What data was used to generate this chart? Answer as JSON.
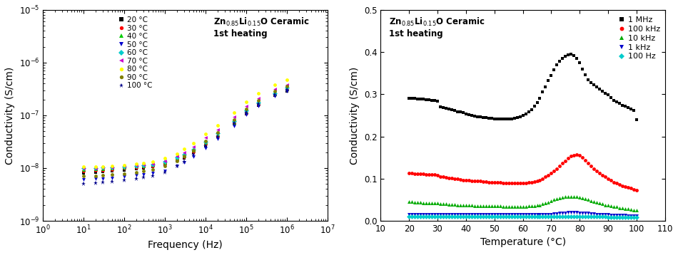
{
  "left_plot": {
    "xlabel": "Frequency (Hz)",
    "ylabel": "Conductivity (S/cm)",
    "xlim": [
      1.0,
      10000000.0
    ],
    "ylim": [
      1e-09,
      1e-05
    ],
    "temperatures": [
      20,
      30,
      40,
      50,
      60,
      70,
      80,
      90,
      100
    ],
    "colors": [
      "#000000",
      "#ff0000",
      "#00cc00",
      "#0000cd",
      "#00cccc",
      "#cc00cc",
      "#ffff00",
      "#808000",
      "#00008b"
    ],
    "markers": [
      "s",
      "o",
      "^",
      "v",
      "D",
      "<",
      "o",
      "o",
      "*"
    ],
    "marker_sizes": [
      3.5,
      3.5,
      3.5,
      3.5,
      3.5,
      3.5,
      3.5,
      3.5,
      4.5
    ],
    "frequencies": [
      10,
      20,
      30,
      50,
      100,
      200,
      300,
      500,
      1000,
      2000,
      3000,
      5000,
      10000,
      20000,
      50000,
      100000,
      200000,
      500000,
      1000000
    ],
    "conductivity_20C": [
      8e-09,
      8.3e-09,
      8.5e-09,
      8.8e-09,
      9.2e-09,
      9.8e-09,
      1e-08,
      1.05e-08,
      1.15e-08,
      1.35e-08,
      1.55e-08,
      1.95e-08,
      2.7e-08,
      3.9e-08,
      6.8e-08,
      1.05e-07,
      1.55e-07,
      2.35e-07,
      2.9e-07
    ],
    "conductivity_30C": [
      8.8e-09,
      9e-09,
      9.2e-09,
      9.5e-09,
      9.9e-09,
      1.02e-08,
      1.07e-08,
      1.1e-08,
      1.22e-08,
      1.45e-08,
      1.65e-08,
      2.05e-08,
      2.9e-08,
      4.1e-08,
      7e-08,
      1.1e-07,
      1.6e-07,
      2.45e-07,
      3.05e-07
    ],
    "conductivity_40C": [
      9.5e-09,
      9.7e-09,
      9.8e-09,
      1e-08,
      1.04e-08,
      1.08e-08,
      1.1e-08,
      1.15e-08,
      1.28e-08,
      1.52e-08,
      1.72e-08,
      2.15e-08,
      3.05e-08,
      4.3e-08,
      7.3e-08,
      1.15e-07,
      1.67e-07,
      2.5e-07,
      3.15e-07
    ],
    "conductivity_50C": [
      6e-09,
      6.2e-09,
      6.3e-09,
      6.5e-09,
      6.9e-09,
      7.3e-09,
      7.6e-09,
      8e-09,
      8.8e-09,
      1.08e-08,
      1.28e-08,
      1.65e-08,
      2.42e-08,
      3.55e-08,
      6.3e-08,
      1.02e-07,
      1.5e-07,
      2.3e-07,
      2.85e-07
    ],
    "conductivity_60C": [
      1e-08,
      1.01e-08,
      1.02e-08,
      1.04e-08,
      1.07e-08,
      1.1e-08,
      1.13e-08,
      1.18e-08,
      1.32e-08,
      1.58e-08,
      1.82e-08,
      2.25e-08,
      3.2e-08,
      4.6e-08,
      7.8e-08,
      1.22e-07,
      1.77e-07,
      2.65e-07,
      3.3e-07
    ],
    "conductivity_70C": [
      1e-08,
      1.01e-08,
      1.02e-08,
      1.04e-08,
      1.08e-08,
      1.13e-08,
      1.16e-08,
      1.22e-08,
      1.38e-08,
      1.68e-08,
      1.98e-08,
      2.55e-08,
      3.75e-08,
      5.4e-08,
      9.3e-08,
      1.48e-07,
      2.12e-07,
      3.15e-07,
      3.85e-07
    ],
    "conductivity_80C": [
      1.05e-08,
      1.06e-08,
      1.07e-08,
      1.09e-08,
      1.13e-08,
      1.2e-08,
      1.25e-08,
      1.32e-08,
      1.52e-08,
      1.88e-08,
      2.28e-08,
      2.95e-08,
      4.42e-08,
      6.4e-08,
      1.12e-07,
      1.78e-07,
      2.58e-07,
      3.85e-07,
      4.75e-07
    ],
    "conductivity_90C": [
      7e-09,
      7.2e-09,
      7.3e-09,
      7.5e-09,
      7.9e-09,
      8.3e-09,
      8.8e-09,
      9.3e-09,
      1.08e-08,
      1.38e-08,
      1.68e-08,
      2.15e-08,
      3.25e-08,
      4.75e-08,
      8.35e-08,
      1.33e-07,
      1.92e-07,
      2.88e-07,
      3.55e-07
    ],
    "conductivity_100C": [
      5e-09,
      5.2e-09,
      5.3e-09,
      5.5e-09,
      5.9e-09,
      6.3e-09,
      6.7e-09,
      7.1e-09,
      8.3e-09,
      1.08e-08,
      1.32e-08,
      1.78e-08,
      2.65e-08,
      3.9e-08,
      7e-08,
      1.12e-07,
      1.62e-07,
      2.45e-07,
      3.05e-07
    ]
  },
  "right_plot": {
    "xlabel": "Temperature (°C)",
    "ylabel": "Conductivity (S/cm)",
    "xlim": [
      10,
      110
    ],
    "ylim": [
      0,
      0.5
    ],
    "xticks": [
      10,
      20,
      30,
      40,
      50,
      60,
      70,
      80,
      90,
      100,
      110
    ],
    "yticks": [
      0.0,
      0.1,
      0.2,
      0.3,
      0.4,
      0.5
    ],
    "frequencies_label": [
      "1 MHz",
      "100 kHz",
      "10 kHz",
      "1 kHz",
      "100 Hz"
    ],
    "colors": [
      "#000000",
      "#ff0000",
      "#00aa00",
      "#0000cc",
      "#00cccc"
    ],
    "markers": [
      "s",
      "o",
      "^",
      "v",
      "D"
    ],
    "temperatures": [
      20,
      21,
      22,
      23,
      24,
      25,
      26,
      27,
      28,
      29,
      30,
      31,
      32,
      33,
      34,
      35,
      36,
      37,
      38,
      39,
      40,
      41,
      42,
      43,
      44,
      45,
      46,
      47,
      48,
      49,
      50,
      51,
      52,
      53,
      54,
      55,
      56,
      57,
      58,
      59,
      60,
      61,
      62,
      63,
      64,
      65,
      66,
      67,
      68,
      69,
      70,
      71,
      72,
      73,
      74,
      75,
      76,
      77,
      78,
      79,
      80,
      81,
      82,
      83,
      84,
      85,
      86,
      87,
      88,
      89,
      90,
      91,
      92,
      93,
      94,
      95,
      96,
      97,
      98,
      99,
      100
    ],
    "cond_1MHz": [
      0.29,
      0.291,
      0.29,
      0.289,
      0.289,
      0.288,
      0.287,
      0.287,
      0.286,
      0.285,
      0.284,
      0.27,
      0.268,
      0.266,
      0.265,
      0.263,
      0.261,
      0.259,
      0.258,
      0.256,
      0.254,
      0.252,
      0.25,
      0.248,
      0.247,
      0.246,
      0.245,
      0.244,
      0.243,
      0.243,
      0.242,
      0.242,
      0.241,
      0.241,
      0.241,
      0.241,
      0.242,
      0.243,
      0.244,
      0.246,
      0.249,
      0.253,
      0.258,
      0.264,
      0.271,
      0.28,
      0.29,
      0.305,
      0.318,
      0.332,
      0.345,
      0.358,
      0.37,
      0.378,
      0.385,
      0.39,
      0.394,
      0.395,
      0.392,
      0.385,
      0.375,
      0.36,
      0.346,
      0.335,
      0.328,
      0.322,
      0.318,
      0.312,
      0.308,
      0.302,
      0.298,
      0.292,
      0.286,
      0.282,
      0.278,
      0.274,
      0.271,
      0.268,
      0.265,
      0.262,
      0.24
    ],
    "cond_100kHz": [
      0.113,
      0.113,
      0.112,
      0.112,
      0.111,
      0.111,
      0.11,
      0.11,
      0.109,
      0.109,
      0.108,
      0.105,
      0.104,
      0.103,
      0.102,
      0.101,
      0.1,
      0.099,
      0.098,
      0.097,
      0.096,
      0.096,
      0.095,
      0.095,
      0.094,
      0.094,
      0.093,
      0.093,
      0.092,
      0.092,
      0.091,
      0.091,
      0.091,
      0.09,
      0.09,
      0.09,
      0.09,
      0.09,
      0.09,
      0.09,
      0.09,
      0.09,
      0.091,
      0.092,
      0.093,
      0.095,
      0.097,
      0.1,
      0.104,
      0.108,
      0.113,
      0.118,
      0.124,
      0.13,
      0.136,
      0.142,
      0.148,
      0.153,
      0.156,
      0.157,
      0.155,
      0.15,
      0.144,
      0.137,
      0.13,
      0.124,
      0.118,
      0.113,
      0.108,
      0.104,
      0.1,
      0.096,
      0.092,
      0.089,
      0.086,
      0.083,
      0.081,
      0.079,
      0.077,
      0.075,
      0.073
    ],
    "cond_10kHz": [
      0.045,
      0.045,
      0.044,
      0.044,
      0.044,
      0.043,
      0.043,
      0.043,
      0.042,
      0.042,
      0.042,
      0.041,
      0.04,
      0.04,
      0.039,
      0.039,
      0.039,
      0.038,
      0.038,
      0.038,
      0.037,
      0.037,
      0.037,
      0.036,
      0.036,
      0.036,
      0.036,
      0.035,
      0.035,
      0.035,
      0.035,
      0.035,
      0.035,
      0.034,
      0.034,
      0.034,
      0.034,
      0.034,
      0.034,
      0.034,
      0.034,
      0.034,
      0.035,
      0.035,
      0.036,
      0.037,
      0.038,
      0.04,
      0.042,
      0.044,
      0.047,
      0.05,
      0.052,
      0.054,
      0.056,
      0.057,
      0.058,
      0.058,
      0.058,
      0.057,
      0.056,
      0.054,
      0.052,
      0.05,
      0.048,
      0.046,
      0.044,
      0.042,
      0.04,
      0.038,
      0.037,
      0.035,
      0.034,
      0.033,
      0.031,
      0.03,
      0.029,
      0.028,
      0.027,
      0.026,
      0.025
    ],
    "cond_1kHz": [
      0.016,
      0.016,
      0.016,
      0.016,
      0.016,
      0.016,
      0.016,
      0.016,
      0.016,
      0.016,
      0.016,
      0.016,
      0.016,
      0.015,
      0.015,
      0.015,
      0.015,
      0.015,
      0.015,
      0.015,
      0.015,
      0.015,
      0.015,
      0.015,
      0.015,
      0.015,
      0.015,
      0.015,
      0.015,
      0.015,
      0.015,
      0.015,
      0.015,
      0.015,
      0.015,
      0.015,
      0.015,
      0.015,
      0.015,
      0.015,
      0.015,
      0.015,
      0.015,
      0.015,
      0.015,
      0.015,
      0.015,
      0.015,
      0.016,
      0.016,
      0.016,
      0.017,
      0.017,
      0.018,
      0.019,
      0.019,
      0.02,
      0.02,
      0.02,
      0.02,
      0.019,
      0.019,
      0.018,
      0.018,
      0.017,
      0.017,
      0.016,
      0.016,
      0.016,
      0.015,
      0.015,
      0.014,
      0.014,
      0.014,
      0.013,
      0.013,
      0.013,
      0.012,
      0.012,
      0.012,
      0.012
    ],
    "cond_100Hz": [
      0.01,
      0.01,
      0.01,
      0.01,
      0.01,
      0.01,
      0.01,
      0.01,
      0.01,
      0.01,
      0.01,
      0.01,
      0.01,
      0.01,
      0.01,
      0.01,
      0.01,
      0.01,
      0.01,
      0.01,
      0.01,
      0.01,
      0.01,
      0.01,
      0.01,
      0.01,
      0.01,
      0.01,
      0.01,
      0.01,
      0.01,
      0.01,
      0.01,
      0.01,
      0.01,
      0.01,
      0.01,
      0.01,
      0.01,
      0.01,
      0.01,
      0.01,
      0.01,
      0.01,
      0.01,
      0.01,
      0.01,
      0.01,
      0.01,
      0.01,
      0.01,
      0.01,
      0.01,
      0.01,
      0.01,
      0.01,
      0.01,
      0.01,
      0.01,
      0.01,
      0.01,
      0.01,
      0.01,
      0.01,
      0.01,
      0.01,
      0.01,
      0.01,
      0.01,
      0.01,
      0.009,
      0.009,
      0.009,
      0.009,
      0.009,
      0.009,
      0.009,
      0.009,
      0.009,
      0.009,
      0.009
    ]
  }
}
